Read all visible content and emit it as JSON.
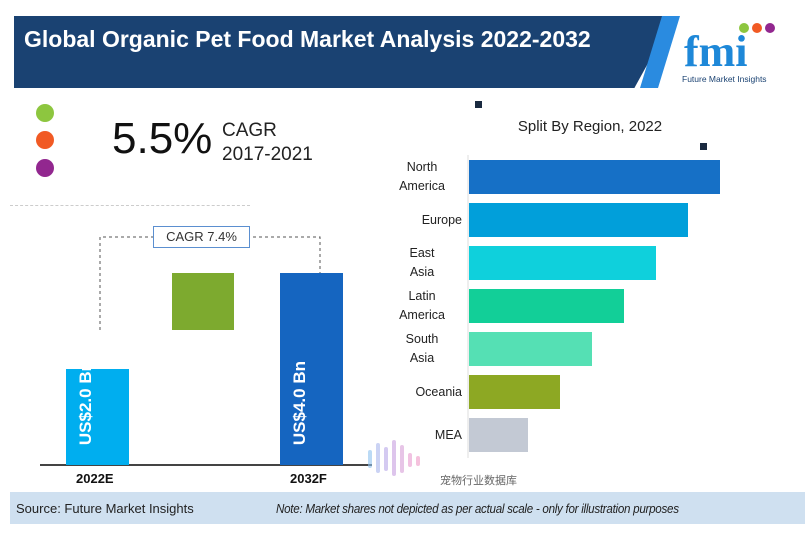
{
  "header": {
    "title": "Global Organic Pet Food  Market Analysis 2022-2032"
  },
  "logo": {
    "text": "fmi",
    "subtext": "Future Market Insights"
  },
  "kpi": {
    "value": "5.5%",
    "label": "CAGR",
    "period": "2017-2021"
  },
  "legend_dot_colors": [
    "#8dc63f",
    "#f15a24",
    "#92278f"
  ],
  "chart_data": [
    {
      "type": "bar",
      "categories": [
        "2022E",
        "2032F"
      ],
      "values": [
        2.0,
        4.0
      ],
      "data_labels": [
        "US$2.0 Bn",
        "US$4.0 Bn"
      ],
      "annotation": "CAGR 7.4%",
      "colors": [
        "#00aeef",
        "#1565c0"
      ],
      "increment_color": "#7daa2f"
    },
    {
      "type": "bar",
      "orientation": "horizontal",
      "title": "Split By Region, 2022",
      "categories": [
        "North America",
        "Europe",
        "East Asia",
        "Latin America",
        "South Asia",
        "Oceania",
        "MEA"
      ],
      "colors": [
        "#1670c6",
        "#019fda",
        "#0fd0dc",
        "#12cf98",
        "#55e0b4",
        "#8da823",
        "#c3c9d4"
      ]
    }
  ],
  "footer": {
    "source": "Source: Future Market Insights",
    "note": "Note: Market shares not depicted as  per actual scale - only for illustration purposes",
    "watermark": "宠物行业数据库"
  }
}
